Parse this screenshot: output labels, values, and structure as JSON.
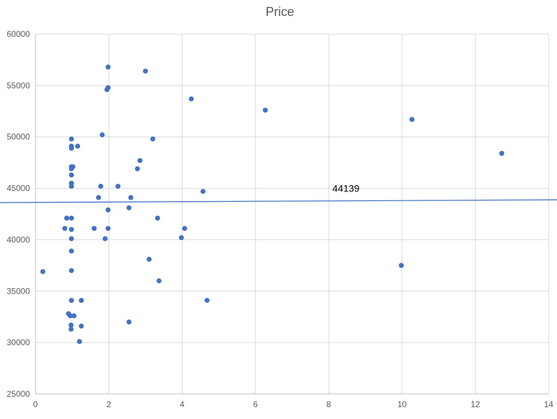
{
  "chart_data": {
    "type": "scatter",
    "title": "Price",
    "xlabel": "",
    "ylabel": "",
    "xlim": [
      0,
      14
    ],
    "ylim": [
      25000,
      60000
    ],
    "x_ticks": [
      0,
      2,
      4,
      6,
      8,
      10,
      12,
      14
    ],
    "y_ticks": [
      25000,
      30000,
      35000,
      40000,
      45000,
      50000,
      55000,
      60000
    ],
    "grid": true,
    "legend": "none",
    "colors": {
      "marker": "#4472c4",
      "trendline": "#4472c4",
      "grid": "#d9d9d9",
      "axis": "#bfbfbf"
    },
    "series": [
      {
        "name": "Price",
        "points": [
          [
            0.2,
            36900
          ],
          [
            0.8,
            41100
          ],
          [
            0.85,
            42100
          ],
          [
            0.9,
            32800
          ],
          [
            0.95,
            32600
          ],
          [
            0.97,
            31700
          ],
          [
            0.97,
            31300
          ],
          [
            0.98,
            34100
          ],
          [
            0.98,
            37000
          ],
          [
            0.98,
            38900
          ],
          [
            0.98,
            40100
          ],
          [
            0.98,
            41000
          ],
          [
            0.98,
            42100
          ],
          [
            0.98,
            45200
          ],
          [
            0.98,
            45500
          ],
          [
            0.98,
            46300
          ],
          [
            0.98,
            46900
          ],
          [
            0.98,
            47100
          ],
          [
            0.98,
            48900
          ],
          [
            0.98,
            49100
          ],
          [
            0.98,
            49800
          ],
          [
            1.02,
            47100
          ],
          [
            1.05,
            32600
          ],
          [
            1.15,
            49100
          ],
          [
            1.2,
            30100
          ],
          [
            1.25,
            31600
          ],
          [
            1.25,
            34100
          ],
          [
            1.6,
            41100
          ],
          [
            1.72,
            44100
          ],
          [
            1.78,
            45200
          ],
          [
            1.82,
            50200
          ],
          [
            1.9,
            40100
          ],
          [
            1.95,
            54600
          ],
          [
            1.98,
            54800
          ],
          [
            1.98,
            42900
          ],
          [
            1.98,
            41100
          ],
          [
            1.98,
            56800
          ],
          [
            2.25,
            45200
          ],
          [
            2.55,
            32000
          ],
          [
            2.55,
            43100
          ],
          [
            2.6,
            44100
          ],
          [
            2.78,
            46900
          ],
          [
            2.85,
            47700
          ],
          [
            3.0,
            56400
          ],
          [
            3.1,
            38100
          ],
          [
            3.2,
            49800
          ],
          [
            3.33,
            42100
          ],
          [
            3.37,
            36000
          ],
          [
            3.98,
            40200
          ],
          [
            4.07,
            41100
          ],
          [
            4.25,
            53700
          ],
          [
            4.57,
            44700
          ],
          [
            4.68,
            34100
          ],
          [
            6.27,
            52600
          ],
          [
            9.98,
            37500
          ],
          [
            10.27,
            51700
          ],
          [
            12.72,
            48400
          ]
        ]
      }
    ],
    "trendline": {
      "type": "linear",
      "x": [
        0,
        14
      ],
      "y": [
        43630,
        43880
      ]
    },
    "annotations": [
      {
        "text": "44139",
        "x": 8.1,
        "y": 44139
      }
    ]
  }
}
